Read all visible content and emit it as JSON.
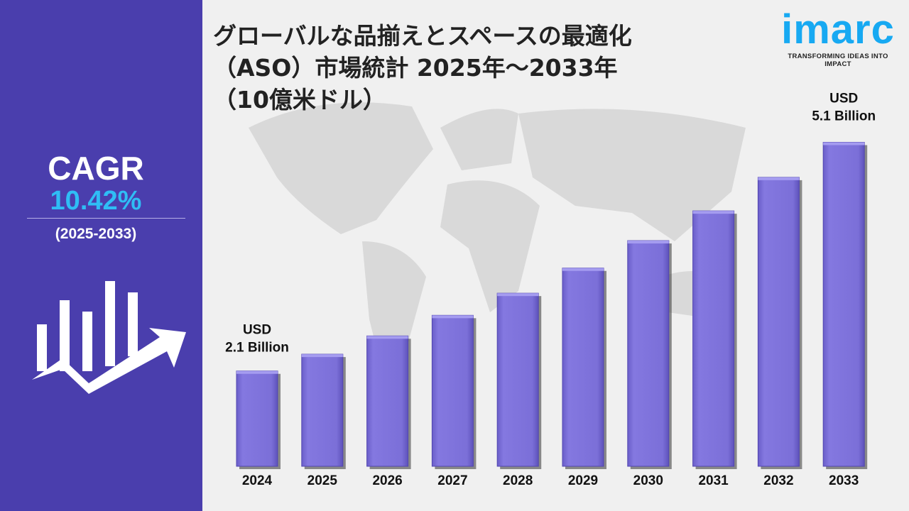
{
  "title": [
    "グローバルな品揃えとスペースの最適化",
    "（ASO）市場統計 2025年～2033年",
    "（10億米ドル）"
  ],
  "logo": {
    "name": "imarc",
    "tagline": "TRANSFORMING IDEAS INTO IMPACT"
  },
  "cagr": {
    "label": "CAGR",
    "value": "10.42%",
    "period": "(2025-2033)"
  },
  "colors": {
    "panel": "#4a3ead",
    "bar": "#7b6fd8",
    "accent": "#2fbdf5"
  },
  "chart_data": {
    "type": "bar",
    "title": "グローバルな品揃えとスペースの最適化（ASO）市場統計 2025年～2033年（10億米ドル）",
    "categories": [
      "2024",
      "2025",
      "2026",
      "2027",
      "2028",
      "2029",
      "2030",
      "2031",
      "2032",
      "2033"
    ],
    "values": [
      2.1,
      2.32,
      2.56,
      2.83,
      3.12,
      3.45,
      3.81,
      4.2,
      4.64,
      5.1
    ],
    "ylim": [
      0.85,
      5.3
    ],
    "xlabel": "",
    "ylabel": "",
    "annotations": [
      {
        "category": "2024",
        "lines": [
          "USD",
          "2.1 Billion"
        ]
      },
      {
        "category": "2033",
        "lines": [
          "USD",
          "5.1 Billion"
        ]
      }
    ]
  }
}
